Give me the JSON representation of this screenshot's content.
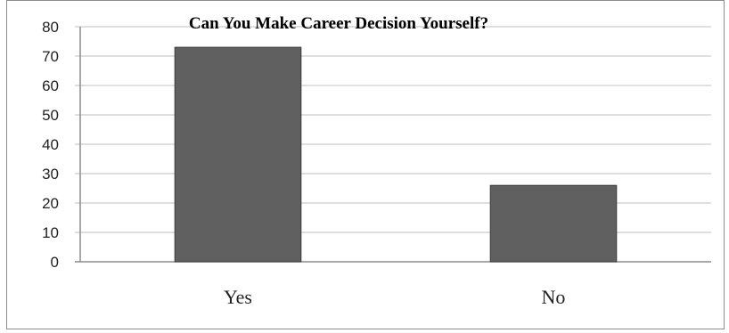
{
  "chart_data": {
    "type": "bar",
    "title": "Can You Make Career Decision Yourself?",
    "categories": [
      "Yes",
      "No"
    ],
    "values": [
      73,
      26
    ],
    "ylim": [
      0,
      80
    ],
    "yticks": [
      0,
      10,
      20,
      30,
      40,
      50,
      60,
      70,
      80
    ],
    "xlabel": "",
    "ylabel": "",
    "grid": true,
    "legend": "none",
    "colors": {
      "bar": "#606060",
      "bar_edge": "#3a3a3a",
      "grid": "#bfbfbf",
      "axis": "#8c8c8c"
    }
  }
}
